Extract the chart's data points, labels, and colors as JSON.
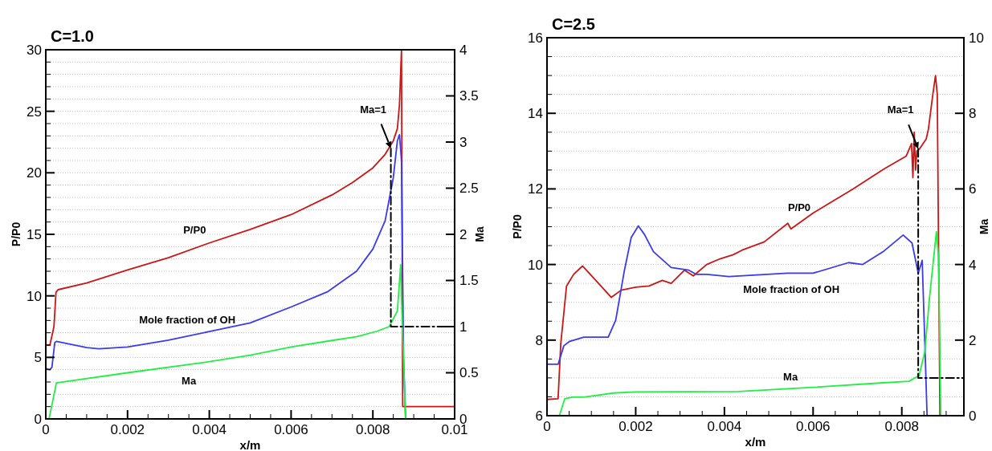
{
  "chart_data": [
    {
      "type": "line",
      "title": "C=1.0",
      "xlabel": "x/m",
      "ylabel": "P/P0",
      "y2label": "Ma",
      "xlim": [
        0,
        0.01
      ],
      "ylim": [
        0,
        30
      ],
      "y2lim": [
        0,
        4
      ],
      "grid": "y",
      "xticks": [
        0,
        {
          "value": 0.0005,
          "label": null
        },
        {
          "value": 0.001,
          "label": null
        },
        {
          "value": 0.0015,
          "label": null
        },
        0.002,
        {
          "value": 0.0025,
          "label": null
        },
        {
          "value": 0.003,
          "label": null
        },
        {
          "value": 0.0035,
          "label": null
        },
        0.004,
        {
          "value": 0.0045,
          "label": null
        },
        {
          "value": 0.005,
          "label": null
        },
        {
          "value": 0.0055,
          "label": null
        },
        0.006,
        {
          "value": 0.0065,
          "label": null
        },
        {
          "value": 0.007,
          "label": null
        },
        {
          "value": 0.0075,
          "label": null
        },
        0.008,
        {
          "value": 0.0085,
          "label": null
        },
        {
          "value": 0.009,
          "label": null
        },
        {
          "value": 0.0095,
          "label": null
        },
        0.01
      ],
      "yticks": [
        0,
        {
          "value": 1,
          "label": null
        },
        {
          "value": 2,
          "label": null
        },
        {
          "value": 3,
          "label": null
        },
        {
          "value": 4,
          "label": null
        },
        5,
        {
          "value": 6,
          "label": null
        },
        {
          "value": 7,
          "label": null
        },
        {
          "value": 8,
          "label": null
        },
        {
          "value": 9,
          "label": null
        },
        10,
        {
          "value": 11,
          "label": null
        },
        {
          "value": 12,
          "label": null
        },
        {
          "value": 13,
          "label": null
        },
        {
          "value": 14,
          "label": null
        },
        15,
        {
          "value": 16,
          "label": null
        },
        {
          "value": 17,
          "label": null
        },
        {
          "value": 18,
          "label": null
        },
        {
          "value": 19,
          "label": null
        },
        20,
        {
          "value": 21,
          "label": null
        },
        {
          "value": 22,
          "label": null
        },
        {
          "value": 23,
          "label": null
        },
        {
          "value": 24,
          "label": null
        },
        25,
        {
          "value": 26,
          "label": null
        },
        {
          "value": 27,
          "label": null
        },
        {
          "value": 28,
          "label": null
        },
        {
          "value": 29,
          "label": null
        },
        30
      ],
      "y2ticks": [
        0,
        0.5,
        1,
        1.5,
        2,
        2.5,
        3,
        3.5,
        4
      ],
      "series": [
        {
          "name": "P/P0",
          "color": "#cc1616",
          "x": [
            0,
            0.0001,
            0.0002,
            0.00025,
            0.0003,
            0.001,
            0.002,
            0.003,
            0.004,
            0.005,
            0.006,
            0.007,
            0.0075,
            0.008,
            0.0083,
            0.0085,
            0.0086,
            0.00865,
            0.0087,
            0.00873,
            0.0088,
            0.01
          ],
          "values": [
            6.0,
            6.0,
            7.5,
            10.3,
            10.5,
            11.05,
            12.1,
            13.1,
            14.3,
            15.4,
            16.6,
            18.2,
            19.2,
            20.4,
            21.5,
            22.6,
            23.6,
            25.5,
            30,
            1.0,
            1.0,
            1.0
          ]
        },
        {
          "name": "Mole fraction of OH",
          "color": "#3a3aee",
          "x": [
            0,
            0.0001,
            0.00015,
            0.00022,
            0.00026,
            0.001,
            0.0013,
            0.002,
            0.003,
            0.004,
            0.005,
            0.006,
            0.0069,
            0.0076,
            0.008,
            0.0083,
            0.0085,
            0.0086,
            0.00865,
            0.0087,
            0.00875,
            0.0088
          ],
          "values": [
            4.1,
            4.0,
            4.2,
            6.2,
            6.3,
            5.8,
            5.7,
            5.85,
            6.4,
            7.1,
            7.8,
            9.1,
            10.35,
            12.0,
            13.8,
            16.1,
            19.6,
            22.6,
            23.1,
            21.0,
            5.0,
            0
          ]
        },
        {
          "name": "Ma",
          "color": "#22ee44",
          "axis": "y2",
          "x": [
            8e-05,
            0.00026,
            0.002,
            0.004,
            0.005,
            0.006,
            0.007,
            0.0076,
            0.0081,
            0.0084,
            0.0086,
            0.00868,
            0.0087,
            0.0088
          ],
          "values": [
            0,
            0.39,
            0.5,
            0.62,
            0.69,
            0.78,
            0.85,
            0.89,
            0.95,
            1.0,
            1.17,
            1.67,
            1.3,
            0
          ]
        },
        {
          "color": "#000000",
          "axis": "y2",
          "line_style": "dashed",
          "x": [
            0.00844,
            0.00844,
            0.01
          ],
          "values": [
            2.93,
            1,
            1
          ]
        }
      ],
      "annotations": [
        {
          "text": "Ma=1",
          "x": 0.00844,
          "y": 22.0
        }
      ]
    },
    {
      "type": "line",
      "title": "C=2.5",
      "xlabel": "x/m",
      "ylabel": "P/P0",
      "y2label": "Ma",
      "xlim": [
        0,
        0.0094
      ],
      "ylim": [
        6,
        16
      ],
      "y2lim": [
        0,
        10
      ],
      "grid": "y",
      "xticks": [
        0,
        {
          "value": 0.0005,
          "label": null
        },
        {
          "value": 0.001,
          "label": null
        },
        {
          "value": 0.0015,
          "label": null
        },
        0.002,
        {
          "value": 0.0025,
          "label": null
        },
        {
          "value": 0.003,
          "label": null
        },
        {
          "value": 0.0035,
          "label": null
        },
        0.004,
        {
          "value": 0.0045,
          "label": null
        },
        {
          "value": 0.005,
          "label": null
        },
        {
          "value": 0.0055,
          "label": null
        },
        0.006,
        {
          "value": 0.0065,
          "label": null
        },
        {
          "value": 0.007,
          "label": null
        },
        {
          "value": 0.0075,
          "label": null
        },
        0.008,
        {
          "value": 0.0085,
          "label": null
        },
        {
          "value": 0.009,
          "label": null
        }
      ],
      "yticks": [
        6,
        {
          "value": 6.5,
          "label": null
        },
        {
          "value": 7,
          "label": null
        },
        {
          "value": 7.5,
          "label": null
        },
        8,
        {
          "value": 8.5,
          "label": null
        },
        {
          "value": 9,
          "label": null
        },
        {
          "value": 9.5,
          "label": null
        },
        10,
        {
          "value": 10.5,
          "label": null
        },
        {
          "value": 11,
          "label": null
        },
        {
          "value": 11.5,
          "label": null
        },
        12,
        {
          "value": 12.5,
          "label": null
        },
        {
          "value": 13,
          "label": null
        },
        {
          "value": 13.5,
          "label": null
        },
        14,
        {
          "value": 14.5,
          "label": null
        },
        {
          "value": 15,
          "label": null
        },
        {
          "value": 15.5,
          "label": null
        },
        16
      ],
      "y2ticks": [
        0,
        2,
        4,
        6,
        8,
        10
      ],
      "series": [
        {
          "name": "P/P0",
          "color": "#cc1616",
          "x": [
            0,
            0.00025,
            0.00031,
            0.00044,
            0.0006,
            0.0008,
            0.0011,
            0.00145,
            0.00167,
            0.002,
            0.0023,
            0.0026,
            0.0028,
            0.0031,
            0.0033,
            0.0036,
            0.0039,
            0.0042,
            0.0044,
            0.0049,
            0.00543,
            0.0055,
            0.006,
            0.0069,
            0.0076,
            0.0081,
            0.00822,
            0.00825,
            0.00828,
            0.00831,
            0.00834,
            0.0084,
            0.00855,
            0.0086,
            0.0087,
            0.00876,
            0.0088,
            0.00886
          ],
          "values": [
            6.43,
            6.45,
            7.9,
            9.43,
            9.74,
            9.96,
            9.58,
            9.13,
            9.32,
            9.4,
            9.43,
            9.58,
            9.5,
            9.85,
            9.7,
            10.0,
            10.15,
            10.26,
            10.38,
            10.6,
            11.09,
            10.94,
            11.36,
            12.0,
            12.53,
            12.87,
            13.2,
            12.3,
            13.5,
            12.5,
            13.0,
            13.06,
            13.32,
            13.58,
            14.5,
            15.0,
            14.5,
            6
          ]
        },
        {
          "name": "Mole fraction of OH",
          "color": "#3a3aee",
          "x": [
            0,
            0.00025,
            0.00038,
            0.0005,
            0.00083,
            0.00138,
            0.00155,
            0.00174,
            0.0019,
            0.00206,
            0.0022,
            0.0024,
            0.0028,
            0.0032,
            0.00336,
            0.0036,
            0.0041,
            0.00543,
            0.006,
            0.0068,
            0.00712,
            0.00758,
            0.00803,
            0.00823,
            0.00837,
            0.00846,
            0.00852,
            0.00857
          ],
          "values": [
            7.36,
            7.36,
            7.85,
            7.96,
            8.08,
            8.08,
            8.53,
            9.81,
            10.72,
            11.02,
            10.79,
            10.34,
            9.92,
            9.85,
            9.74,
            9.74,
            9.68,
            9.77,
            9.77,
            10.05,
            10.0,
            10.34,
            10.78,
            10.57,
            9.77,
            10.11,
            7.9,
            6
          ]
        },
        {
          "name": "Ma",
          "color": "#22ee44",
          "axis": "y2",
          "x": [
            0.00028,
            0.0004,
            0.00057,
            0.00083,
            0.0015,
            0.002,
            0.00432,
            0.006,
            0.00758,
            0.00816,
            0.00839,
            0.00852,
            0.00862,
            0.00872,
            0.00878,
            0.00883,
            0.00888
          ],
          "values": [
            0,
            0.45,
            0.49,
            0.49,
            0.6,
            0.63,
            0.64,
            0.75,
            0.87,
            0.91,
            1.06,
            1.7,
            3.06,
            4.19,
            4.87,
            4.19,
            0
          ]
        },
        {
          "color": "#000000",
          "axis": "y2",
          "line_style": "dashed",
          "x": [
            0.00837,
            0.00837,
            0.0094
          ],
          "values": [
            7.06,
            1,
            1
          ]
        }
      ],
      "annotations": [
        {
          "text": "Ma=1",
          "x": 0.00837,
          "y": 13.06
        }
      ]
    }
  ]
}
